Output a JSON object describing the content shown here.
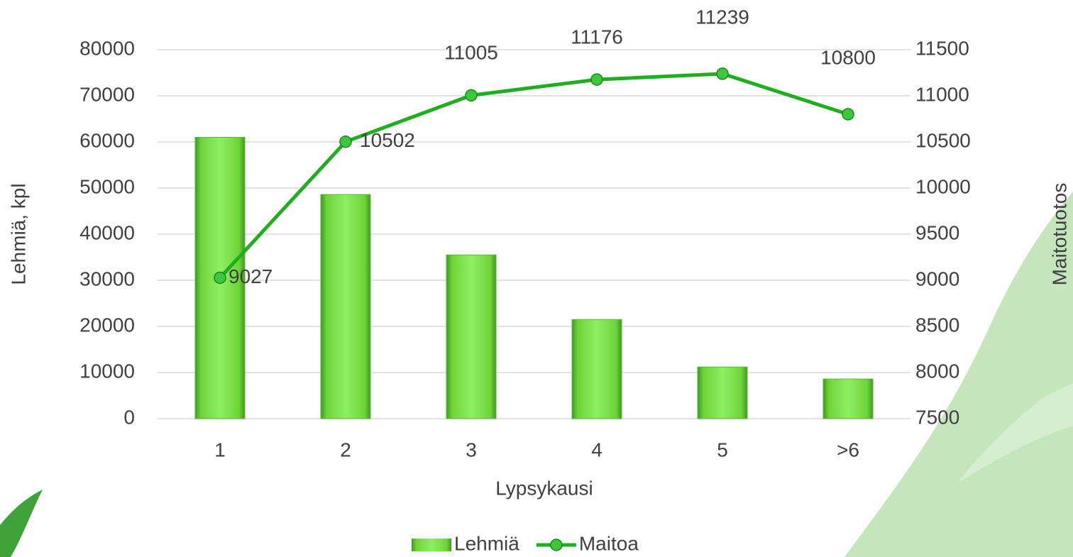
{
  "chart_data": {
    "type": "bar-line",
    "x_label": "Lypsykausi",
    "y_label": "Lehmiä, kpl",
    "y2_label": "Maitotuotos",
    "categories": [
      "1",
      "2",
      "3",
      "4",
      "5",
      ">6"
    ],
    "ylim": [
      0,
      80000
    ],
    "yticks": [
      0,
      10000,
      20000,
      30000,
      40000,
      50000,
      60000,
      70000,
      80000
    ],
    "y2lim": [
      7500,
      11500
    ],
    "y2ticks": [
      7500,
      8000,
      8500,
      9000,
      9500,
      10000,
      10500,
      11000,
      11500
    ],
    "grid": true,
    "legend": "bottom",
    "series": [
      {
        "name": "Lehmiä",
        "type": "bar",
        "color": "#6fd43a",
        "values": [
          61000,
          48600,
          35500,
          21500,
          11200,
          8600
        ]
      },
      {
        "name": "Maitoa",
        "type": "line",
        "axis": "y2",
        "color": "#1fae1f",
        "values": [
          9027,
          10502,
          11005,
          11176,
          11239,
          10800
        ]
      }
    ]
  }
}
